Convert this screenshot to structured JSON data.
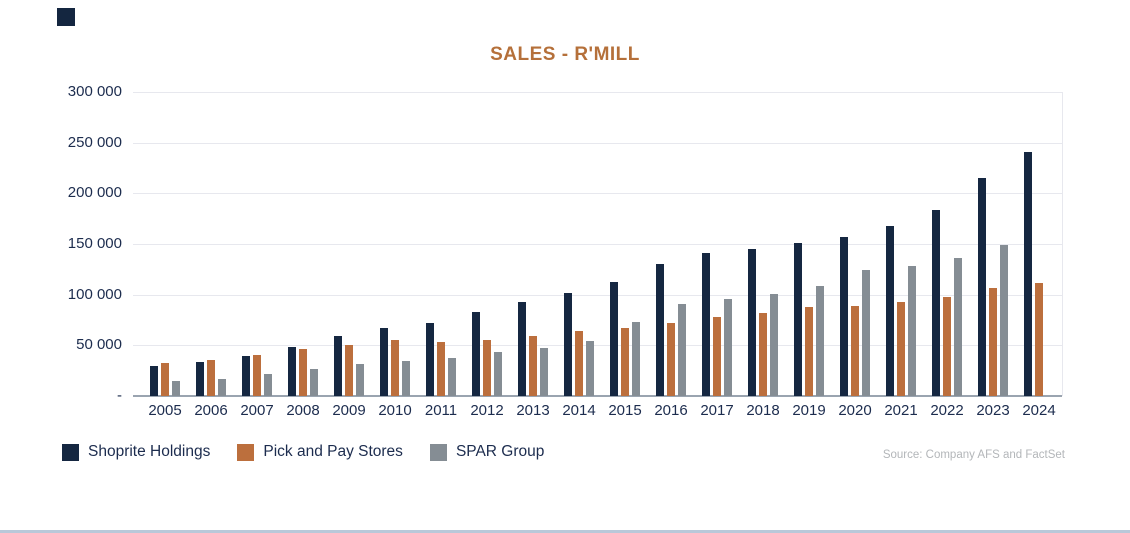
{
  "title": "SALES - R'MILL",
  "source": "Source: Company AFS and FactSet",
  "y_axis": {
    "labels": [
      "300 000",
      "250 000",
      "200 000",
      "150 000",
      "100 000",
      "50 000",
      "-"
    ],
    "max": 300000,
    "step": 50000
  },
  "colors": {
    "navy": "#152741",
    "orange": "#bc6f3d",
    "gray": "#858d94",
    "title": "#b5703a",
    "gridline": "#e7e8ee",
    "axis_line": "#9aa4b0",
    "source_text": "#b3b6b9",
    "bottom_rule": "#b9c8d9"
  },
  "chart_data": {
    "type": "bar",
    "title": "SALES - R'MILL",
    "xlabel": "",
    "ylabel": "",
    "ylim": [
      0,
      300000
    ],
    "grid": true,
    "legend_position": "bottom-left",
    "categories": [
      "2005",
      "2006",
      "2007",
      "2008",
      "2009",
      "2010",
      "2011",
      "2012",
      "2013",
      "2014",
      "2015",
      "2016",
      "2017",
      "2018",
      "2019",
      "2020",
      "2021",
      "2022",
      "2023",
      "2024"
    ],
    "series": [
      {
        "name": "Shoprite Holdings",
        "color": "#152741",
        "values": [
          30000,
          34000,
          39000,
          48000,
          59000,
          67000,
          72000,
          83000,
          93000,
          102000,
          113000,
          130000,
          141000,
          145000,
          151000,
          157000,
          168000,
          184000,
          215000,
          241000
        ]
      },
      {
        "name": "Pick and Pay Stores",
        "color": "#bc6f3d",
        "values": [
          33000,
          36000,
          40000,
          46000,
          50000,
          55000,
          53000,
          55000,
          59000,
          64000,
          67000,
          72000,
          78000,
          82000,
          88000,
          89000,
          93000,
          98000,
          107000,
          112000
        ]
      },
      {
        "name": "SPAR Group",
        "color": "#858d94",
        "values": [
          15000,
          17000,
          22000,
          27000,
          32000,
          35000,
          38000,
          43000,
          47000,
          54000,
          73000,
          91000,
          96000,
          101000,
          109000,
          124000,
          128000,
          136000,
          149000,
          null
        ]
      }
    ]
  }
}
